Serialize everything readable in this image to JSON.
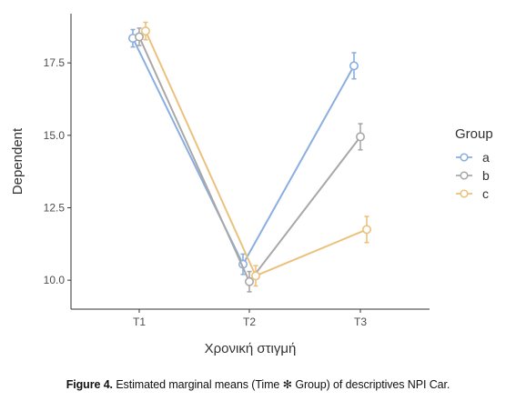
{
  "chart_data": {
    "type": "line",
    "xlabel": "Χρονική στιγμή",
    "ylabel": "Dependent",
    "categories": [
      "T1",
      "T2",
      "T3"
    ],
    "ylim": [
      9.0,
      19.2
    ],
    "yticks": [
      10.0,
      12.5,
      15.0,
      17.5
    ],
    "ytick_labels": [
      "10.0",
      "12.5",
      "15.0",
      "17.5"
    ],
    "grid": false,
    "legend": {
      "title": "Group",
      "position": "right"
    },
    "series": [
      {
        "name": "a",
        "color": "#8aaee0",
        "values": [
          18.35,
          10.55,
          17.4
        ],
        "errors": [
          0.3,
          0.35,
          0.45
        ]
      },
      {
        "name": "b",
        "color": "#a8a8a8",
        "values": [
          18.4,
          9.95,
          14.95
        ],
        "errors": [
          0.3,
          0.35,
          0.45
        ]
      },
      {
        "name": "c",
        "color": "#ebc17e",
        "values": [
          18.6,
          10.15,
          11.75
        ],
        "errors": [
          0.3,
          0.35,
          0.45
        ]
      }
    ]
  },
  "caption": {
    "label": "Figure 4.",
    "text": "Estimated marginal means (Time ✻ Group) of descriptives NPI Car."
  }
}
